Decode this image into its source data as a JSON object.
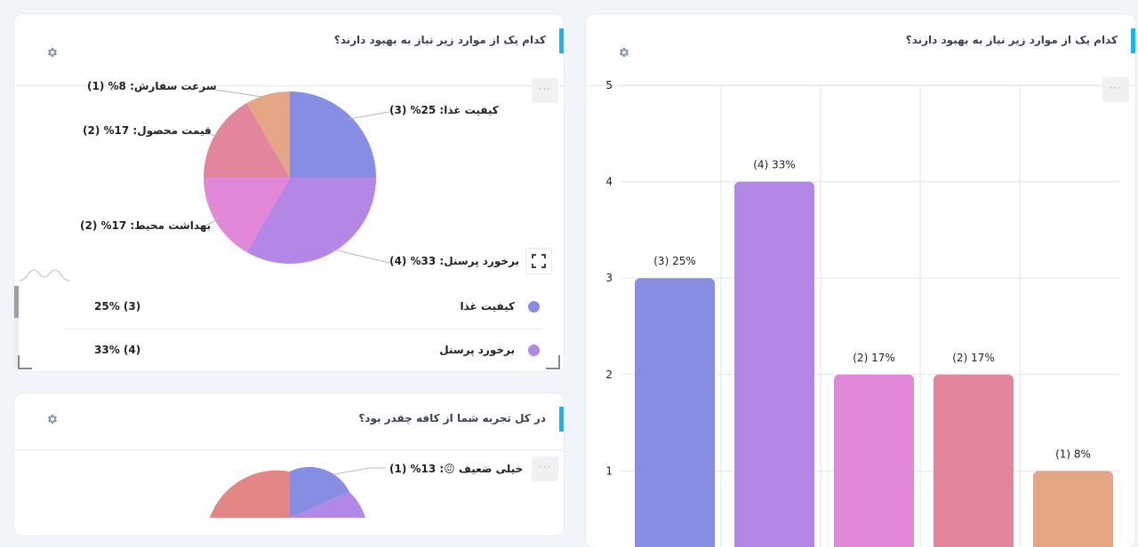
{
  "cards": {
    "top_left": {
      "title": "کدام یک از موارد زیر نیاز به بهبود دارند؟",
      "labels": [
        "کیفیت غذا: 25% (3)",
        "برخورد پرسنل: 33% (4)",
        "بهداشت محیط: 17% (2)",
        "قیمت محصول: 17% (2)",
        "سرعت سفارش: 8% (1)"
      ],
      "legend": [
        {
          "name": "کیفیت غذا",
          "value": "(3) 25%",
          "color": "#868de3"
        },
        {
          "name": "برخورد پرسنل",
          "value": "(4) 33%",
          "color": "#b387e6"
        }
      ]
    },
    "bottom_left": {
      "title": "در کل تجربه شما از کافه چقدر بود؟",
      "label_first": "خیلی ضعیف 😖: 13% (1)"
    },
    "right": {
      "title": "کدام یک از موارد زیر نیاز به بهبود دارند؟"
    }
  },
  "chart_data": [
    {
      "type": "pie",
      "categories": [
        "کیفیت غذا",
        "برخورد پرسنل",
        "بهداشت محیط",
        "قیمت محصول",
        "سرعت سفارش"
      ],
      "values": [
        3,
        4,
        2,
        2,
        1
      ],
      "percents": [
        25,
        33,
        17,
        17,
        8
      ],
      "colors": [
        "#868de3",
        "#b387e6",
        "#e387d9",
        "#e3869d",
        "#e3a786"
      ]
    },
    {
      "type": "bar",
      "values": [
        3,
        4,
        2,
        2,
        1
      ],
      "data_labels": [
        "(3) 25%",
        "(4) 33%",
        "(2) 17%",
        "(2) 17%",
        "(1) 8%"
      ],
      "colors": [
        "#868de3",
        "#b387e6",
        "#e387d9",
        "#e3869d",
        "#e3a786"
      ],
      "ylim": [
        0,
        5
      ],
      "yticks": [
        1,
        2,
        3,
        4,
        5
      ],
      "grid": true
    }
  ],
  "icons": {
    "settings": "gear-icon",
    "more": "more-options-icon",
    "fullscreen": "fullscreen-icon"
  }
}
